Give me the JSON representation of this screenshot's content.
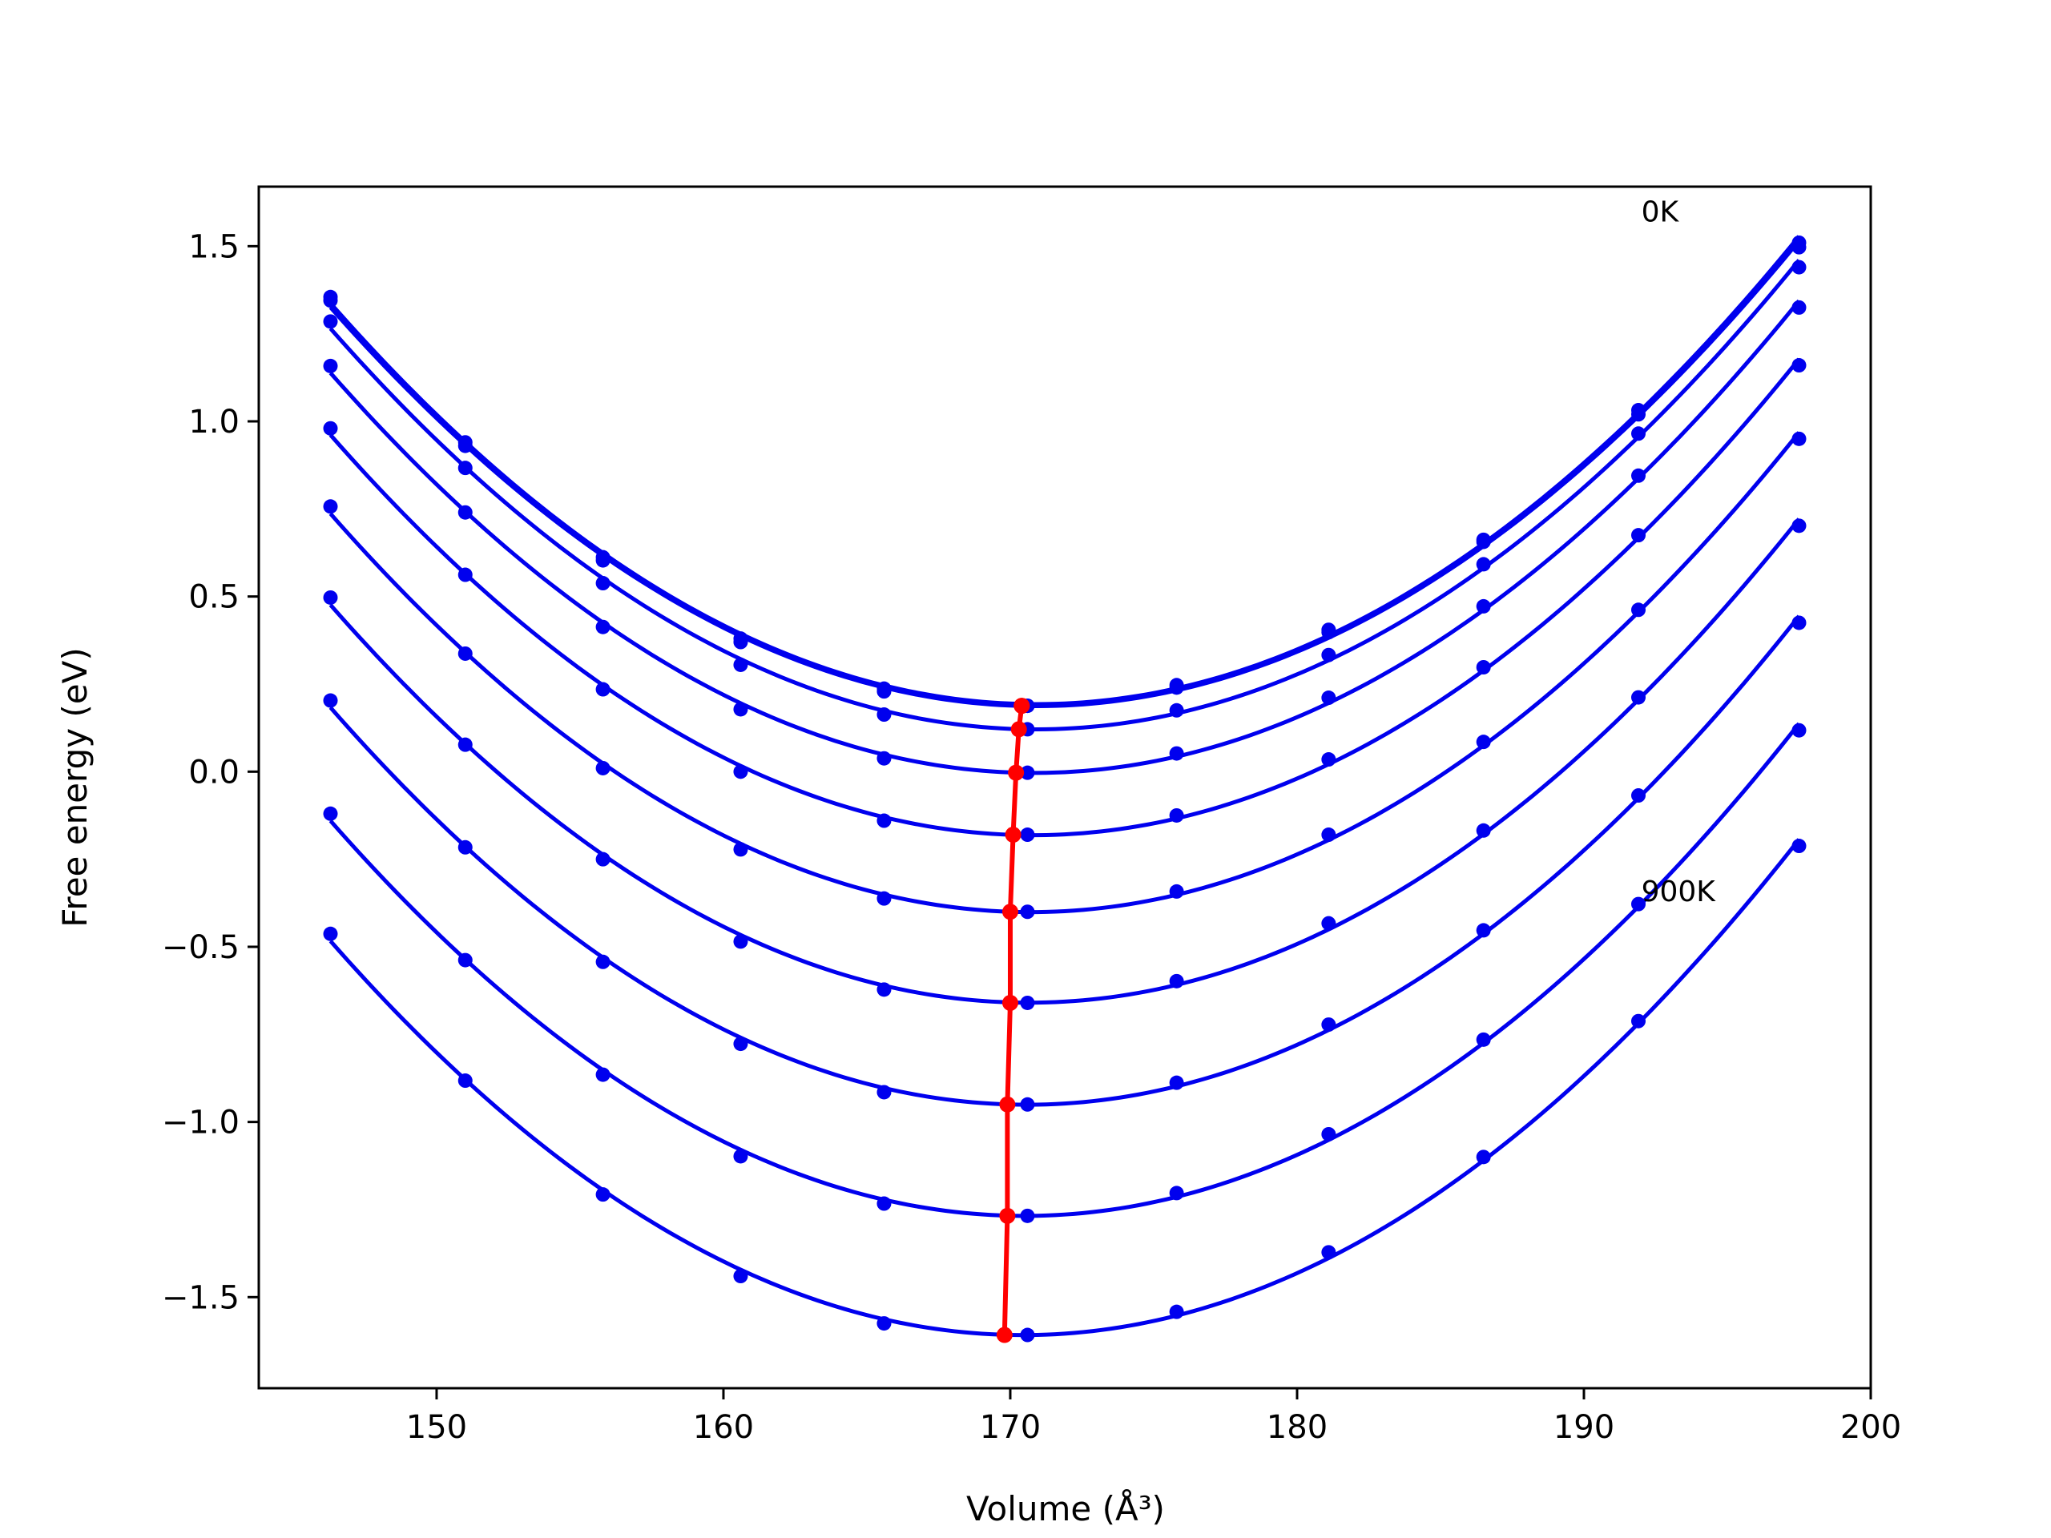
{
  "chart_data": {
    "type": "line",
    "title": "",
    "xlabel": "Volume (Å³)",
    "ylabel": "Free energy (eV)",
    "xlim": [
      143.8,
      200.0
    ],
    "ylim": [
      -1.76,
      1.67
    ],
    "xticks": [
      150,
      160,
      170,
      180,
      190,
      200
    ],
    "xtick_labels": [
      "150",
      "160",
      "170",
      "180",
      "190",
      "200"
    ],
    "yticks": [
      -1.5,
      -1.0,
      -0.5,
      0.0,
      0.5,
      1.0,
      1.5
    ],
    "ytick_labels": [
      "−1.5",
      "−1.0",
      "−0.5",
      "0.0",
      "0.5",
      "1.0",
      "1.5"
    ],
    "grid": false,
    "legend": "none",
    "colors": {
      "curves": "#0000ee",
      "minima": "#ff0000"
    },
    "annotations": [
      {
        "text": "0K",
        "x": 192.0,
        "y": 1.57
      },
      {
        "text": "900K",
        "x": 192.0,
        "y": -0.37
      }
    ],
    "volumes": [
      146.3,
      151.0,
      155.8,
      160.6,
      165.6,
      170.6,
      175.8,
      181.1,
      186.5,
      191.9,
      197.5
    ],
    "series": [
      {
        "values": [
          1.355,
          0.94,
          0.612,
          0.38,
          0.237,
          0.188,
          0.247,
          0.405,
          0.662,
          1.032,
          1.51
        ]
      },
      {
        "values": [
          1.345,
          0.93,
          0.603,
          0.37,
          0.229,
          0.188,
          0.24,
          0.398,
          0.656,
          1.02,
          1.497
        ]
      },
      {
        "values": [
          1.285,
          0.867,
          0.538,
          0.305,
          0.163,
          0.121,
          0.175,
          0.333,
          0.592,
          0.965,
          1.44
        ]
      },
      {
        "values": [
          1.158,
          0.74,
          0.413,
          0.178,
          0.038,
          -0.003,
          0.052,
          0.211,
          0.472,
          0.845,
          1.325
        ]
      },
      {
        "values": [
          0.98,
          0.562,
          0.235,
          0.0,
          -0.14,
          -0.18,
          -0.125,
          0.035,
          0.298,
          0.675,
          1.16
        ]
      },
      {
        "values": [
          0.757,
          0.337,
          0.01,
          -0.222,
          -0.362,
          -0.4,
          -0.342,
          -0.18,
          0.085,
          0.462,
          0.95
        ]
      },
      {
        "values": [
          0.497,
          0.077,
          -0.25,
          -0.485,
          -0.622,
          -0.66,
          -0.598,
          -0.433,
          -0.168,
          0.212,
          0.702
        ]
      },
      {
        "values": [
          0.203,
          -0.216,
          -0.543,
          -0.777,
          -0.915,
          -0.95,
          -0.888,
          -0.722,
          -0.453,
          -0.068,
          0.425
        ]
      },
      {
        "values": [
          -0.12,
          -0.538,
          -0.865,
          -1.098,
          -1.233,
          -1.268,
          -1.203,
          -1.035,
          -0.765,
          -0.378,
          0.118
        ]
      },
      {
        "values": [
          -0.463,
          -0.882,
          -1.207,
          -1.44,
          -1.575,
          -1.608,
          -1.542,
          -1.372,
          -1.1,
          -0.712,
          -0.212
        ]
      }
    ],
    "minima": {
      "x": [
        170.4,
        170.4,
        170.3,
        170.2,
        170.1,
        170.0,
        170.0,
        169.9,
        169.9,
        169.8
      ],
      "y": [
        0.188,
        0.188,
        0.121,
        -0.003,
        -0.18,
        -0.4,
        -0.66,
        -0.95,
        -1.268,
        -1.608
      ]
    }
  }
}
